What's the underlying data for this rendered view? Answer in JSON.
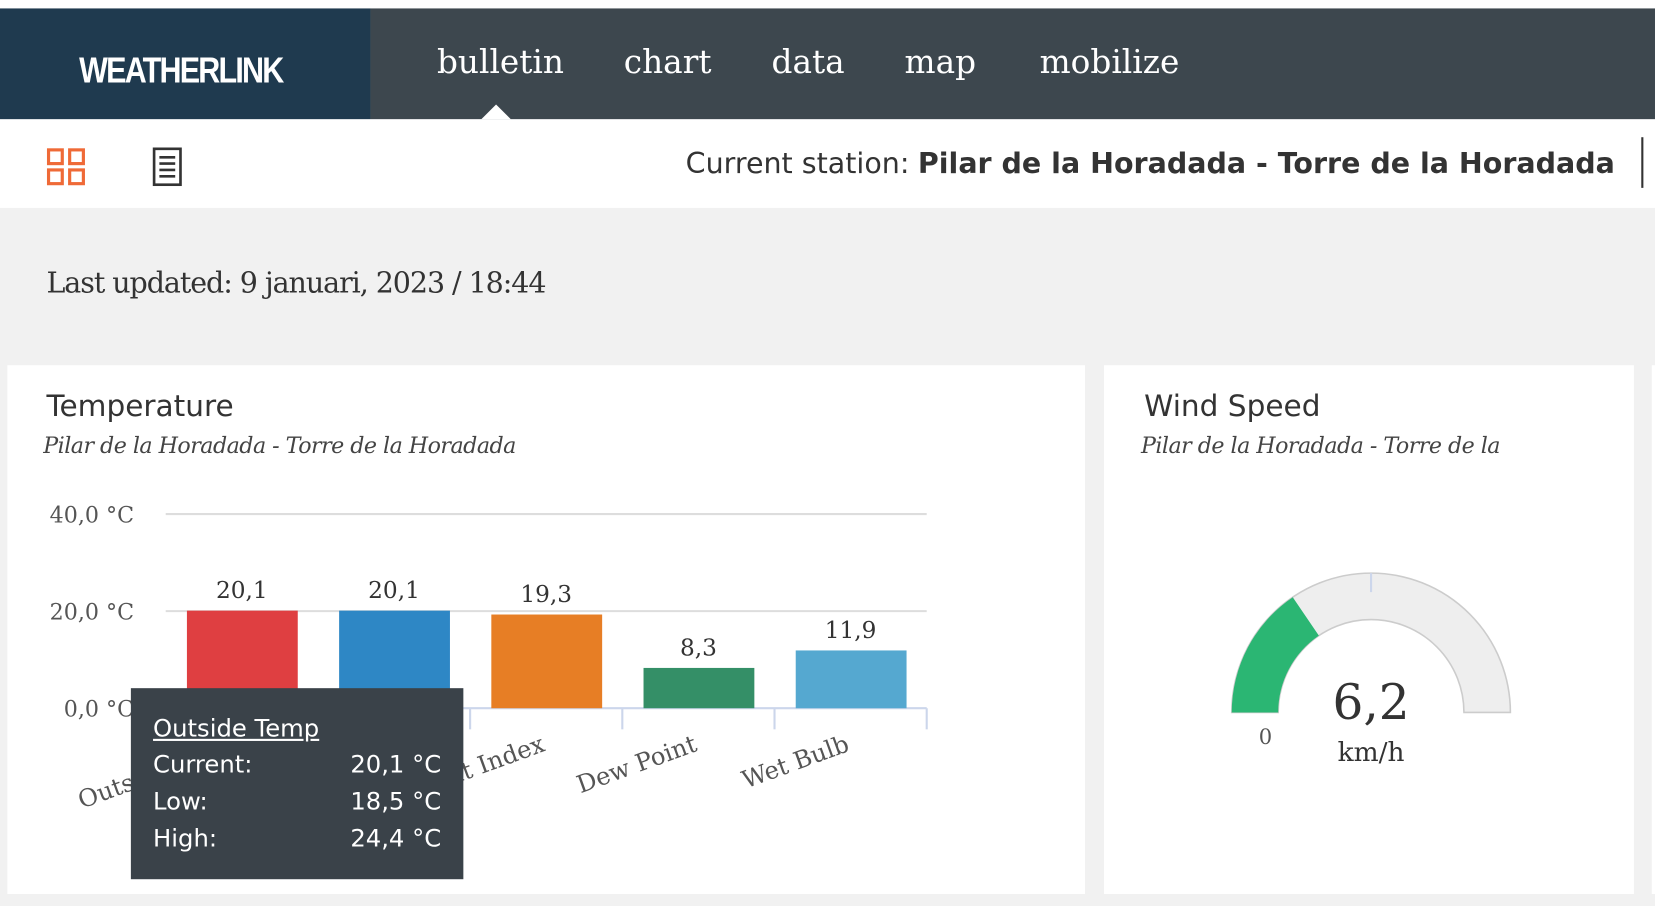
{
  "nav": {
    "logo": "WEATHERLINK",
    "items": [
      "bulletin",
      "chart",
      "data",
      "map",
      "mobilize"
    ]
  },
  "station": {
    "label": "Current station:",
    "name": "Pilar de la Horadada - Torre de la Horadada"
  },
  "last_updated": "Last updated: 9 januari, 2023 / 18:44",
  "temperature": {
    "title": "Temperature",
    "subtitle": "Pilar de la Horadada - Torre de la Horadada",
    "chart": {
      "type": "bar",
      "categories": [
        "Outside Temp",
        null,
        "Heat Index",
        "Dew Point",
        "Wet Bulb"
      ],
      "values": [
        20.1,
        20.1,
        19.3,
        8.3,
        11.9
      ],
      "value_labels": [
        "20,1",
        "20,1",
        "19,3",
        "8,3",
        "11,9"
      ],
      "colors": [
        "#df3f41",
        "#2e87c5",
        "#e77e25",
        "#348f67",
        "#55a8d0"
      ],
      "ylim": [
        0,
        40
      ],
      "yticks": [
        {
          "value": 0,
          "label": "0,0 °C"
        },
        {
          "value": 20,
          "label": "20,0 °C"
        },
        {
          "value": 40,
          "label": "40,0 °C"
        }
      ],
      "grid": true
    },
    "tooltip": {
      "title": "Outside Temp",
      "rows": [
        [
          "Current:",
          "20,1 °C"
        ],
        [
          "Low:",
          "18,5 °C"
        ],
        [
          "High:",
          "24,4 °C"
        ]
      ]
    }
  },
  "wind": {
    "title": "Wind Speed",
    "subtitle": "Pilar de la Horadada - Torre de la",
    "value": 6.2,
    "value_label": "6,2",
    "unit": "km/h",
    "range": [
      0,
      20
    ],
    "color": "#2bb673"
  }
}
